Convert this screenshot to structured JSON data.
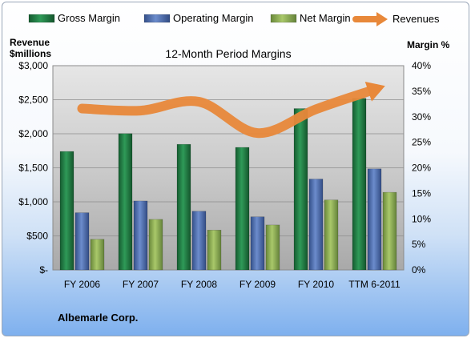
{
  "chart_data": {
    "type": "bar",
    "title": "12-Month Period Margins",
    "ylabel_left": [
      "Revenue",
      "$millions"
    ],
    "ylabel_right": "Margin %",
    "company": "Albemarle Corp.",
    "categories": [
      "FY 2006",
      "FY 2007",
      "FY 2008",
      "FY 2009",
      "FY 2010",
      "TTM 6-2011"
    ],
    "left_axis": {
      "min": 0,
      "max": 3000,
      "ticks": [
        "$-",
        "$500",
        "$1,000",
        "$1,500",
        "$2,000",
        "$2,500",
        "$3,000"
      ]
    },
    "right_axis": {
      "min": 0,
      "max": 40,
      "ticks": [
        "0%",
        "5%",
        "10%",
        "15%",
        "20%",
        "25%",
        "30%",
        "35%",
        "40%"
      ]
    },
    "grid": true,
    "legend_position": "top",
    "series": [
      {
        "name": "Gross Margin",
        "kind": "bar",
        "axis": "right",
        "color": "#217a45",
        "values": [
          23.2,
          26.7,
          24.6,
          24.0,
          31.6,
          33.6
        ]
      },
      {
        "name": "Operating Margin",
        "kind": "bar",
        "axis": "right",
        "color": "#4f6fb0",
        "values": [
          11.2,
          13.5,
          11.5,
          10.4,
          17.8,
          19.8
        ]
      },
      {
        "name": "Net Margin",
        "kind": "bar",
        "axis": "right",
        "color": "#8cb04f",
        "values": [
          6.0,
          9.9,
          7.8,
          8.8,
          13.7,
          15.2
        ]
      },
      {
        "name": "Revenues",
        "kind": "line",
        "axis": "left",
        "color": "#e8883a",
        "values": [
          2370,
          2340,
          2470,
          2010,
          2360,
          2650
        ]
      }
    ]
  }
}
